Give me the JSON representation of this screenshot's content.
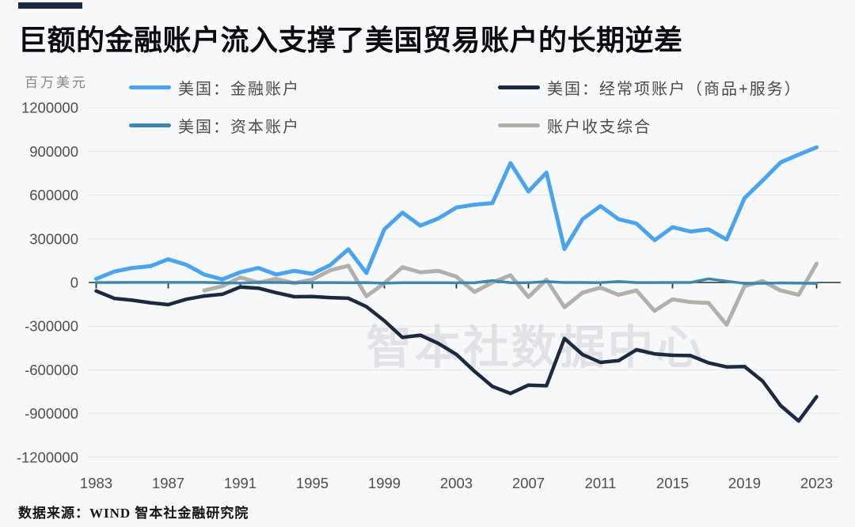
{
  "title": "巨额的金融账户流入支撑了美国贸易账户的长期逆差",
  "unit_label": "百万美元",
  "source_note": "数据来源：WIND 智本社金融研究院",
  "watermark": "智本社数据中心",
  "colors": {
    "background": "#f7f8fa",
    "accent_bar": "#1b2a42",
    "grid": "#e4e6ea",
    "axis_line": "#2f2f2f",
    "tick_label": "#4f4f4f",
    "title_text": "#0b0b13",
    "legend_text": "#4a4a4a",
    "unit_text": "#8b8779",
    "watermark_text": "rgba(178,181,190,0.32)",
    "source_text": "#141414",
    "financial": "#4aa3ee",
    "capital": "#3e87af",
    "current": "#1b2a40",
    "comprehensive": "#b3b0ac"
  },
  "legend": [
    {
      "label": "美国：金融账户",
      "series": "financial"
    },
    {
      "label": "美国：资本账户",
      "series": "capital"
    },
    {
      "label": "美国：经常项账户（商品+服务）",
      "series": "current"
    },
    {
      "label": "账户收支综合",
      "series": "comprehensive"
    }
  ],
  "chart_data": {
    "type": "line",
    "title": "巨额的金融账户流入支撑了美国贸易账户的长期逆差",
    "ylabel": "百万美元",
    "xlabel": "",
    "grid": true,
    "legend_position": "top",
    "ylim": [
      -1200000,
      1200000
    ],
    "ytick_step": 300000,
    "yticks": [
      -1200000,
      -900000,
      -600000,
      -300000,
      0,
      300000,
      600000,
      900000,
      1200000
    ],
    "xticks": [
      1983,
      1987,
      1991,
      1995,
      1999,
      2003,
      2007,
      2011,
      2015,
      2019,
      2023
    ],
    "x": [
      1983,
      1984,
      1985,
      1986,
      1987,
      1988,
      1989,
      1990,
      1991,
      1992,
      1993,
      1994,
      1995,
      1996,
      1997,
      1998,
      1999,
      2000,
      2001,
      2002,
      2003,
      2004,
      2005,
      2006,
      2007,
      2008,
      2009,
      2010,
      2011,
      2012,
      2013,
      2014,
      2015,
      2016,
      2017,
      2018,
      2019,
      2020,
      2021,
      2022,
      2023
    ],
    "series": [
      {
        "name": "美国：金融账户",
        "key": "financial",
        "values": [
          25000,
          75000,
          100000,
          112000,
          160000,
          122000,
          55000,
          22000,
          70000,
          100000,
          55000,
          80000,
          60000,
          120000,
          228000,
          65000,
          365000,
          480000,
          390000,
          440000,
          515000,
          535000,
          545000,
          820000,
          625000,
          755000,
          230000,
          435000,
          525000,
          435000,
          405000,
          290000,
          380000,
          350000,
          365000,
          295000,
          580000,
          700000,
          825000,
          878000,
          928000
        ]
      },
      {
        "name": "美国：经常项账户（商品+服务）",
        "key": "current",
        "values": [
          -58000,
          -109000,
          -122000,
          -139000,
          -152000,
          -115000,
          -93000,
          -81000,
          -31000,
          -39000,
          -70000,
          -98000,
          -96000,
          -104000,
          -108000,
          -166000,
          -263000,
          -377000,
          -362000,
          -419000,
          -494000,
          -610000,
          -714000,
          -762000,
          -705000,
          -709000,
          -384000,
          -495000,
          -549000,
          -537000,
          -462000,
          -490000,
          -500000,
          -502000,
          -552000,
          -580000,
          -577000,
          -677000,
          -845000,
          -951000,
          -785000
        ]
      },
      {
        "name": "美国：资本账户",
        "key": "capital",
        "values": [
          200,
          250,
          300,
          300,
          500,
          500,
          300,
          -2000,
          -4500,
          600,
          -100,
          -1700,
          -900,
          -700,
          -1000,
          -700,
          -4800,
          -1000,
          -1100,
          -1500,
          -2000,
          -2300,
          13100,
          -1800,
          -1800,
          6000,
          -100,
          -150,
          -1200,
          6900,
          -400,
          -300,
          -40,
          -60,
          24800,
          9400,
          -6300,
          -5500,
          -2500,
          -4000,
          -6500
        ]
      },
      {
        "name": "账户收支综合",
        "key": "comprehensive",
        "values": [
          null,
          null,
          null,
          null,
          null,
          null,
          -55000,
          -25000,
          35000,
          0,
          25000,
          -5000,
          20000,
          85000,
          115000,
          -95000,
          -5000,
          105000,
          70000,
          80000,
          40000,
          -65000,
          0,
          50000,
          -100000,
          20000,
          -170000,
          -70000,
          -35000,
          -85000,
          -55000,
          -195000,
          -115000,
          -135000,
          -140000,
          -290000,
          -25000,
          10000,
          -55000,
          -85000,
          130000
        ]
      }
    ]
  }
}
